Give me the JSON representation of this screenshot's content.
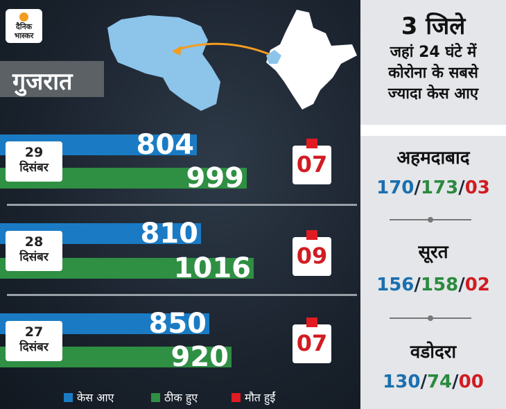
{
  "brand": {
    "line1": "दैनिक",
    "line2": "भास्कर"
  },
  "state_label": "गुजरात",
  "colors": {
    "cases": "#1a7bc4",
    "recovered": "#2f8f43",
    "deaths": "#e01b22"
  },
  "chart_data": {
    "type": "bar",
    "categories": [
      "29 दिसंबर",
      "28 दिसंबर",
      "27 दिसंबर"
    ],
    "series": [
      {
        "name": "केस आए",
        "values": [
          804,
          810,
          850
        ]
      },
      {
        "name": "ठीक हुए",
        "values": [
          999,
          1016,
          920
        ]
      },
      {
        "name": "मौत हुईं",
        "values": [
          7,
          9,
          7
        ]
      }
    ]
  },
  "rows": [
    {
      "day": "29",
      "month": "दिसंबर",
      "cases": "804",
      "recovered": "999",
      "deaths": "07"
    },
    {
      "day": "28",
      "month": "दिसंबर",
      "cases": "810",
      "recovered": "1016",
      "deaths": "09"
    },
    {
      "day": "27",
      "month": "दिसंबर",
      "cases": "850",
      "recovered": "920",
      "deaths": "07"
    }
  ],
  "legend": {
    "cases": "केस आए",
    "recovered": "ठीक हुए",
    "deaths": "मौत हुईं"
  },
  "panel": {
    "title_line1": "3 जिले",
    "title_line2": "जहां 24 घंटे में",
    "title_line3": "कोरोना के सबसे",
    "title_line4": "ज्यादा केस आए"
  },
  "districts": [
    {
      "name": "अहमदाबाद",
      "cases": "170",
      "recovered": "173",
      "deaths": "03"
    },
    {
      "name": "सूरत",
      "cases": "156",
      "recovered": "158",
      "deaths": "02"
    },
    {
      "name": "वडोदरा",
      "cases": "130",
      "recovered": "74",
      "deaths": "00"
    }
  ]
}
